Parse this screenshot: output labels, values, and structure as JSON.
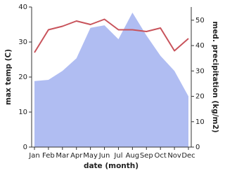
{
  "chart_data": {
    "type": "line-area",
    "x_label": "date (month)",
    "y_label": "max temp (C)",
    "y2_label": "med. precipitation (kg/m2)",
    "categories": [
      "Jan",
      "Feb",
      "Mar",
      "Apr",
      "May",
      "Jun",
      "Jul",
      "Aug",
      "Sep",
      "Oct",
      "Nov",
      "Dec"
    ],
    "series": [
      {
        "name": "med. precipitation",
        "kind": "area",
        "axis": "y2",
        "color": "#b0bdf2",
        "values": [
          26,
          26.5,
          30,
          35,
          47,
          48,
          42.5,
          53,
          44,
          36,
          30,
          20
        ]
      },
      {
        "name": "max temp",
        "kind": "line",
        "color": "#c8535b",
        "values": [
          27,
          33.5,
          34.5,
          36,
          35,
          36.5,
          33.5,
          33.5,
          33,
          34,
          27.5,
          31
        ]
      }
    ],
    "ylim": [
      0,
      40
    ],
    "yticks": [
      0,
      10,
      20,
      30,
      40
    ],
    "y2lim": [
      0,
      55.2
    ],
    "y2ticks": [
      0,
      10,
      20,
      30,
      40,
      50
    ]
  }
}
